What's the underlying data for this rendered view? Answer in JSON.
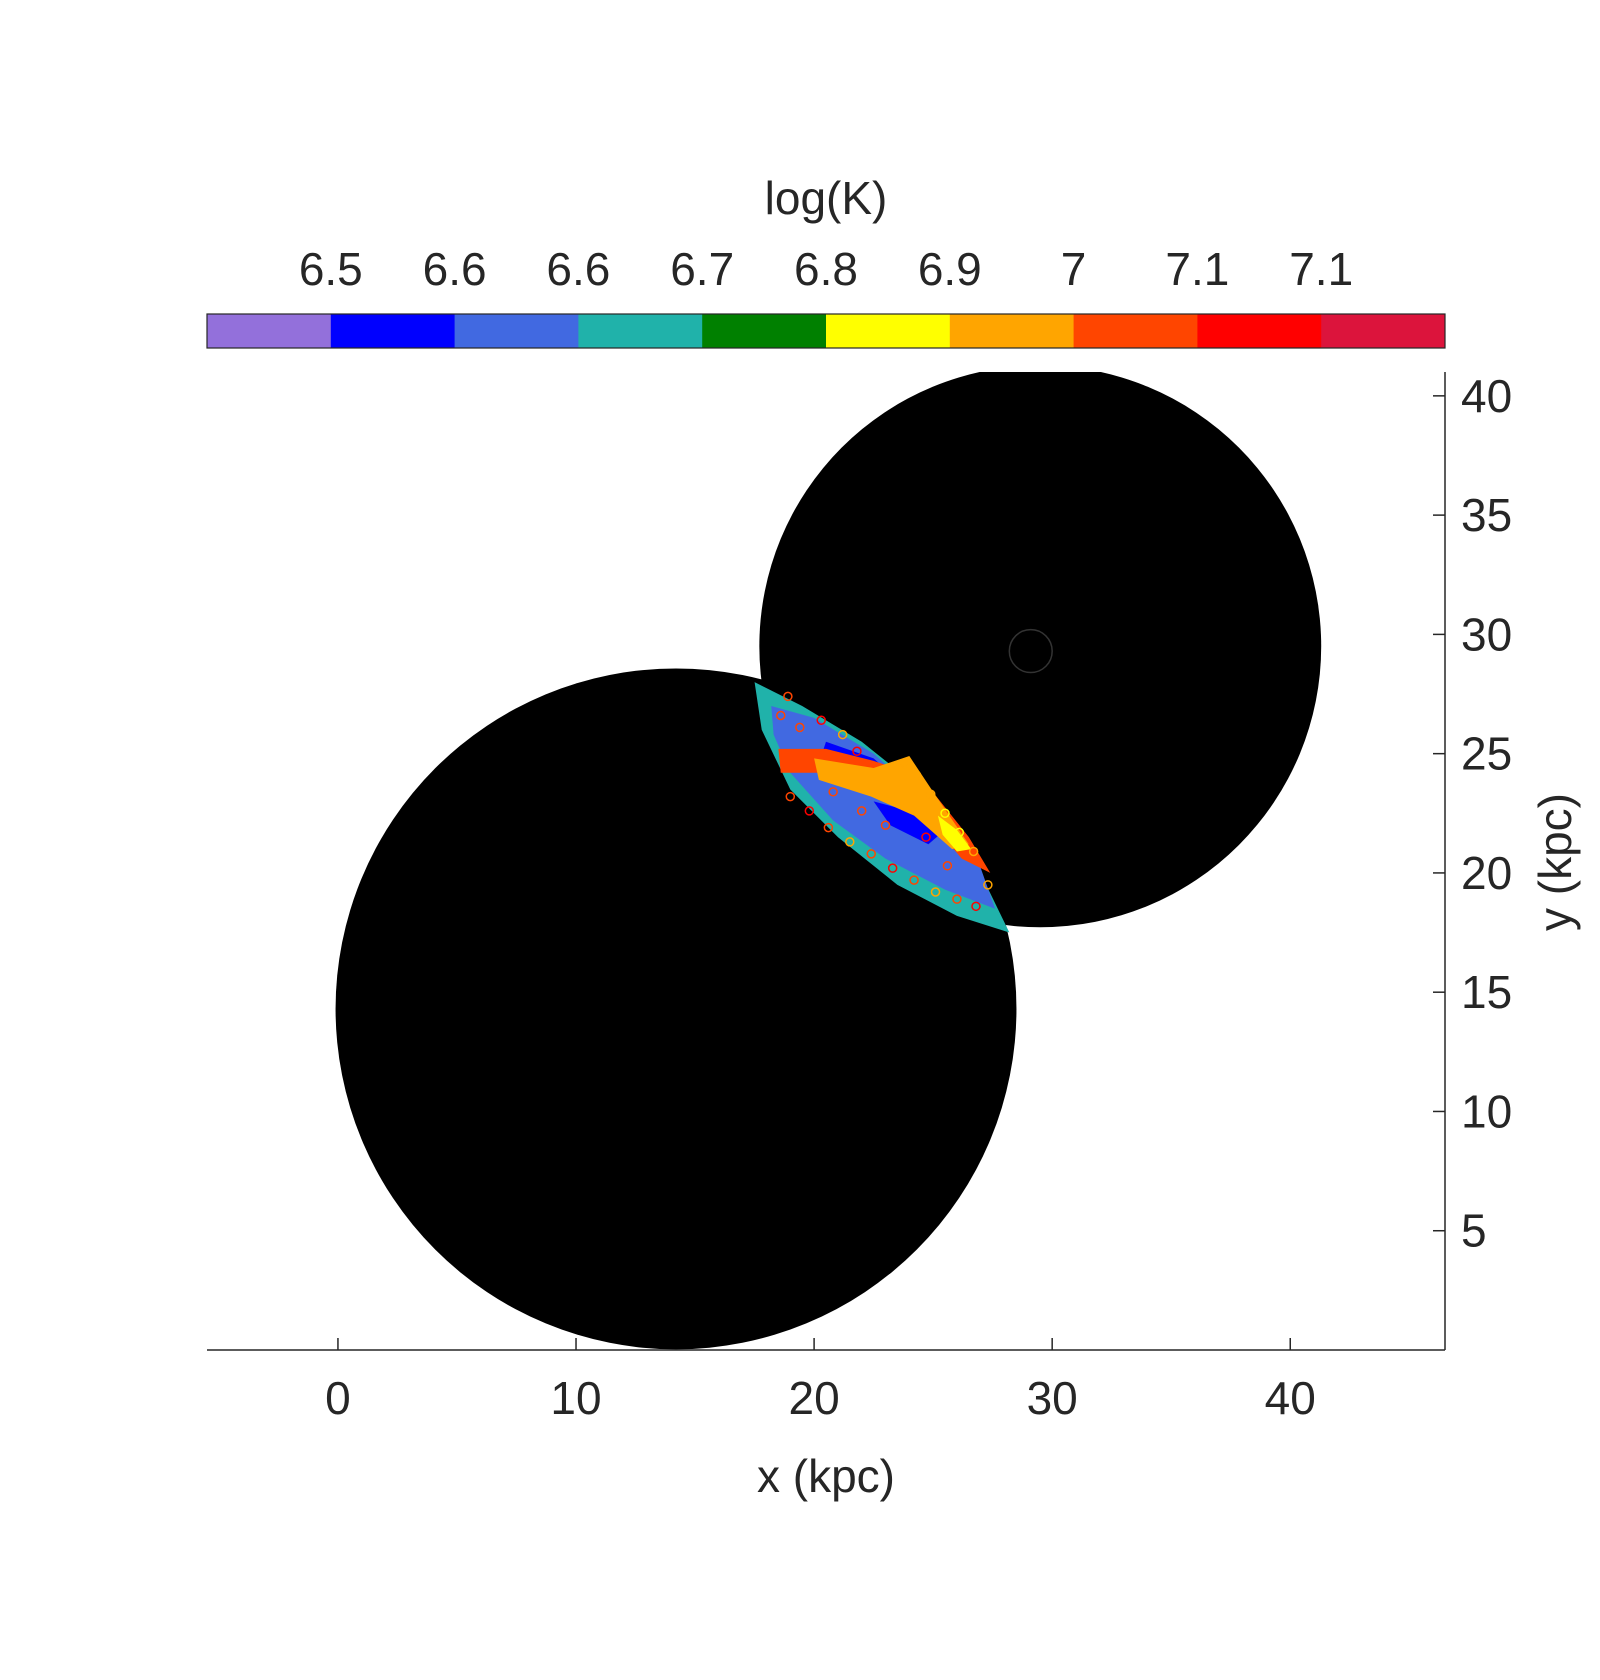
{
  "chart_data": {
    "type": "scatter",
    "title": "",
    "xlabel": "x (kpc)",
    "ylabel": "y (kpc)",
    "xlim": [
      -5.5,
      46.5
    ],
    "ylim": [
      0,
      41
    ],
    "xticks": [
      0,
      10,
      20,
      30,
      40
    ],
    "yticks": [
      5,
      10,
      15,
      20,
      25,
      30,
      35,
      40
    ],
    "y_axis_location": "right",
    "grid": false,
    "colorbar": {
      "title": "log(K)",
      "location": "top",
      "tick_labels": [
        "6.5",
        "6.6",
        "6.6",
        "6.7",
        "6.8",
        "6.9",
        "7",
        "7.1",
        "7.1"
      ],
      "colors": [
        "#9370DB",
        "#0000FF",
        "#4169E1",
        "#20B2AA",
        "#008000",
        "#FFFF00",
        "#FFA500",
        "#FF4500",
        "#FF0000",
        "#DC143C"
      ]
    },
    "regions": [
      {
        "shape": "circle",
        "cx": 14.2,
        "cy": 14.3,
        "r": 14.3,
        "color": "#000000"
      },
      {
        "shape": "circle",
        "cx": 29.5,
        "cy": 29.5,
        "r": 11.8,
        "color": "#000000"
      },
      {
        "shape": "circle-outline",
        "cx": 29.1,
        "cy": 29.3,
        "r": 0.9,
        "color": "#333333"
      }
    ],
    "overlap_region": {
      "description_colors": [
        "#20B2AA",
        "#4169E1",
        "#0000FF",
        "#FF4500",
        "#FFA500",
        "#FFFF00"
      ],
      "bands": [
        {
          "color": "#20B2AA",
          "points": [
            [
              17.5,
              28.0
            ],
            [
              19.5,
              27.0
            ],
            [
              22.0,
              25.5
            ],
            [
              24.5,
              23.5
            ],
            [
              26.5,
              21.0
            ],
            [
              28.2,
              17.5
            ],
            [
              26.0,
              18.2
            ],
            [
              23.5,
              19.5
            ],
            [
              21.0,
              21.5
            ],
            [
              19.0,
              23.5
            ],
            [
              17.8,
              26.0
            ]
          ]
        },
        {
          "color": "#4169E1",
          "points": [
            [
              18.2,
              27.0
            ],
            [
              20.0,
              26.5
            ],
            [
              22.5,
              25.0
            ],
            [
              25.0,
              22.8
            ],
            [
              27.0,
              20.2
            ],
            [
              27.6,
              18.5
            ],
            [
              25.5,
              19.3
            ],
            [
              23.0,
              20.6
            ],
            [
              20.8,
              22.2
            ],
            [
              19.0,
              24.2
            ],
            [
              18.3,
              25.8
            ]
          ]
        },
        {
          "color": "#0000FF",
          "points": [
            [
              20.5,
              25.5
            ],
            [
              22.5,
              24.8
            ],
            [
              24.0,
              23.5
            ],
            [
              23.0,
              23.0
            ],
            [
              21.5,
              23.8
            ],
            [
              20.2,
              24.6
            ]
          ]
        },
        {
          "color": "#0000FF",
          "points": [
            [
              22.5,
              23.0
            ],
            [
              24.0,
              22.6
            ],
            [
              25.5,
              21.8
            ],
            [
              24.8,
              21.2
            ],
            [
              23.2,
              22.0
            ]
          ]
        },
        {
          "color": "#FF4500",
          "points": [
            [
              18.5,
              25.2
            ],
            [
              20.5,
              25.2
            ],
            [
              22.5,
              24.7
            ],
            [
              24.5,
              24.0
            ],
            [
              26.5,
              21.5
            ],
            [
              27.4,
              20.0
            ],
            [
              26.2,
              20.6
            ],
            [
              24.5,
              22.6
            ],
            [
              22.5,
              23.6
            ],
            [
              20.5,
              24.2
            ],
            [
              18.6,
              24.2
            ]
          ]
        },
        {
          "color": "#FFA500",
          "points": [
            [
              20.0,
              24.8
            ],
            [
              22.5,
              24.4
            ],
            [
              24.0,
              24.9
            ],
            [
              25.0,
              23.4
            ],
            [
              26.5,
              21.2
            ],
            [
              25.8,
              21.0
            ],
            [
              24.2,
              22.4
            ],
            [
              22.4,
              23.2
            ],
            [
              20.2,
              23.9
            ]
          ]
        },
        {
          "color": "#FFFF00",
          "points": [
            [
              25.2,
              22.4
            ],
            [
              26.0,
              21.8
            ],
            [
              26.6,
              21.0
            ],
            [
              26.0,
              20.9
            ],
            [
              25.4,
              21.6
            ]
          ]
        }
      ],
      "scatter_markers": [
        {
          "x": 18.6,
          "y": 26.6,
          "color": "#FF4500"
        },
        {
          "x": 19.4,
          "y": 26.1,
          "color": "#FF4500"
        },
        {
          "x": 20.3,
          "y": 26.4,
          "color": "#FF0000"
        },
        {
          "x": 21.2,
          "y": 25.8,
          "color": "#FFA500"
        },
        {
          "x": 19.0,
          "y": 23.2,
          "color": "#FF4500"
        },
        {
          "x": 19.8,
          "y": 22.6,
          "color": "#FF0000"
        },
        {
          "x": 20.6,
          "y": 21.9,
          "color": "#FF4500"
        },
        {
          "x": 21.5,
          "y": 21.3,
          "color": "#FFA500"
        },
        {
          "x": 22.4,
          "y": 20.8,
          "color": "#FF4500"
        },
        {
          "x": 23.3,
          "y": 20.2,
          "color": "#FF0000"
        },
        {
          "x": 24.2,
          "y": 19.7,
          "color": "#FF4500"
        },
        {
          "x": 25.1,
          "y": 19.2,
          "color": "#FFA500"
        },
        {
          "x": 26.0,
          "y": 18.9,
          "color": "#FF4500"
        },
        {
          "x": 26.8,
          "y": 18.6,
          "color": "#FF0000"
        },
        {
          "x": 23.8,
          "y": 24.6,
          "color": "#FFA500"
        },
        {
          "x": 24.3,
          "y": 24.1,
          "color": "#FFA500"
        },
        {
          "x": 24.9,
          "y": 23.3,
          "color": "#FFA500"
        },
        {
          "x": 25.5,
          "y": 22.5,
          "color": "#FFFF00"
        },
        {
          "x": 26.1,
          "y": 21.7,
          "color": "#FFFF00"
        },
        {
          "x": 26.7,
          "y": 20.9,
          "color": "#FFA500"
        },
        {
          "x": 22.0,
          "y": 22.6,
          "color": "#FF4500"
        },
        {
          "x": 20.8,
          "y": 23.4,
          "color": "#FF4500"
        },
        {
          "x": 18.9,
          "y": 27.4,
          "color": "#FF4500"
        },
        {
          "x": 21.8,
          "y": 25.1,
          "color": "#FF0000"
        },
        {
          "x": 23.0,
          "y": 22.0,
          "color": "#FF4500"
        },
        {
          "x": 25.6,
          "y": 20.3,
          "color": "#FF4500"
        },
        {
          "x": 27.3,
          "y": 19.5,
          "color": "#FFA500"
        },
        {
          "x": 24.7,
          "y": 21.5,
          "color": "#FF0000"
        }
      ]
    }
  }
}
